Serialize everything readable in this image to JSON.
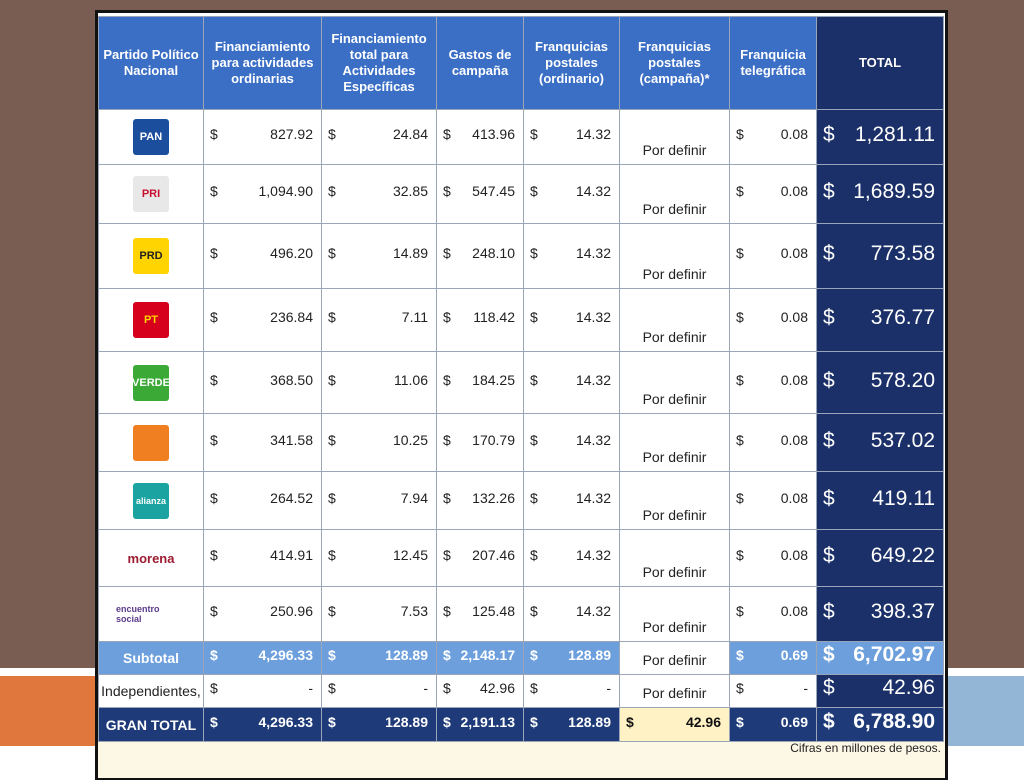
{
  "table": {
    "header": [
      "Partido Político Nacional",
      "Financiamiento para actividades ordinarias",
      "Financiamiento total para Actividades Específicas",
      "Gastos de campaña",
      "Franquicias postales (ordinario)",
      "Franquicias postales (campaña)*",
      "Franquicia telegráfica",
      "TOTAL"
    ],
    "currency": "$",
    "rows": [
      {
        "logo": {
          "text": "PAN",
          "bg": "#1b4f9e",
          "fg": "#ffffff"
        },
        "cells": [
          "827.92",
          "24.84",
          "413.96",
          "14.32",
          "Por definir",
          "0.08"
        ],
        "total": "1,281.11"
      },
      {
        "logo": {
          "text": "PRI",
          "bg": "#e8e8e8",
          "fg": "#c8102e"
        },
        "cells": [
          "1,094.90",
          "32.85",
          "547.45",
          "14.32",
          "Por definir",
          "0.08"
        ],
        "total": "1,689.59"
      },
      {
        "logo": {
          "text": "PRD",
          "bg": "#ffd400",
          "fg": "#222222"
        },
        "cells": [
          "496.20",
          "14.89",
          "248.10",
          "14.32",
          "Por definir",
          "0.08"
        ],
        "total": "773.58"
      },
      {
        "logo": {
          "text": "PT",
          "bg": "#d6001c",
          "fg": "#ffd400"
        },
        "cells": [
          "236.84",
          "7.11",
          "118.42",
          "14.32",
          "Por definir",
          "0.08"
        ],
        "total": "376.77"
      },
      {
        "logo": {
          "text": "VERDE",
          "bg": "#3aa935",
          "fg": "#ffffff"
        },
        "cells": [
          "368.50",
          "11.06",
          "184.25",
          "14.32",
          "Por definir",
          "0.08"
        ],
        "total": "578.20"
      },
      {
        "logo": {
          "bg": "#f07f22"
        },
        "cells": [
          "341.58",
          "10.25",
          "170.79",
          "14.32",
          "Por definir",
          "0.08"
        ],
        "total": "537.02"
      },
      {
        "logo": {
          "text": "alianza",
          "bg": "#1aa3a0",
          "fg": "#ffffff"
        },
        "cells": [
          "264.52",
          "7.94",
          "132.26",
          "14.32",
          "Por definir",
          "0.08"
        ],
        "total": "419.11"
      },
      {
        "logo": {
          "text": "morena",
          "fg": "#9b1b30"
        },
        "cells": [
          "414.91",
          "12.45",
          "207.46",
          "14.32",
          "Por definir",
          "0.08"
        ],
        "total": "649.22"
      },
      {
        "logo": {
          "text": "encuentro social",
          "fg": "#5a3a8a"
        },
        "cells": [
          "250.96",
          "7.53",
          "125.48",
          "14.32",
          "Por definir",
          "0.08"
        ],
        "total": "398.37"
      }
    ],
    "subtotal": {
      "label": "Subtotal",
      "cells": [
        "4,296.33",
        "128.89",
        "2,148.17",
        "128.89",
        "Por definir",
        "0.69"
      ],
      "total": "6,702.97"
    },
    "independientes": {
      "label": "Independientes,",
      "cells": [
        "-",
        "-",
        "42.96",
        "-",
        "Por definir",
        "-"
      ],
      "total": "42.96"
    },
    "gran_total": {
      "label": "GRAN TOTAL",
      "cells": [
        "4,296.33",
        "128.89",
        "2,191.13",
        "128.89",
        "42.96",
        "0.69"
      ],
      "total": "6,788.90"
    },
    "note": "Cifras en millones de pesos."
  }
}
